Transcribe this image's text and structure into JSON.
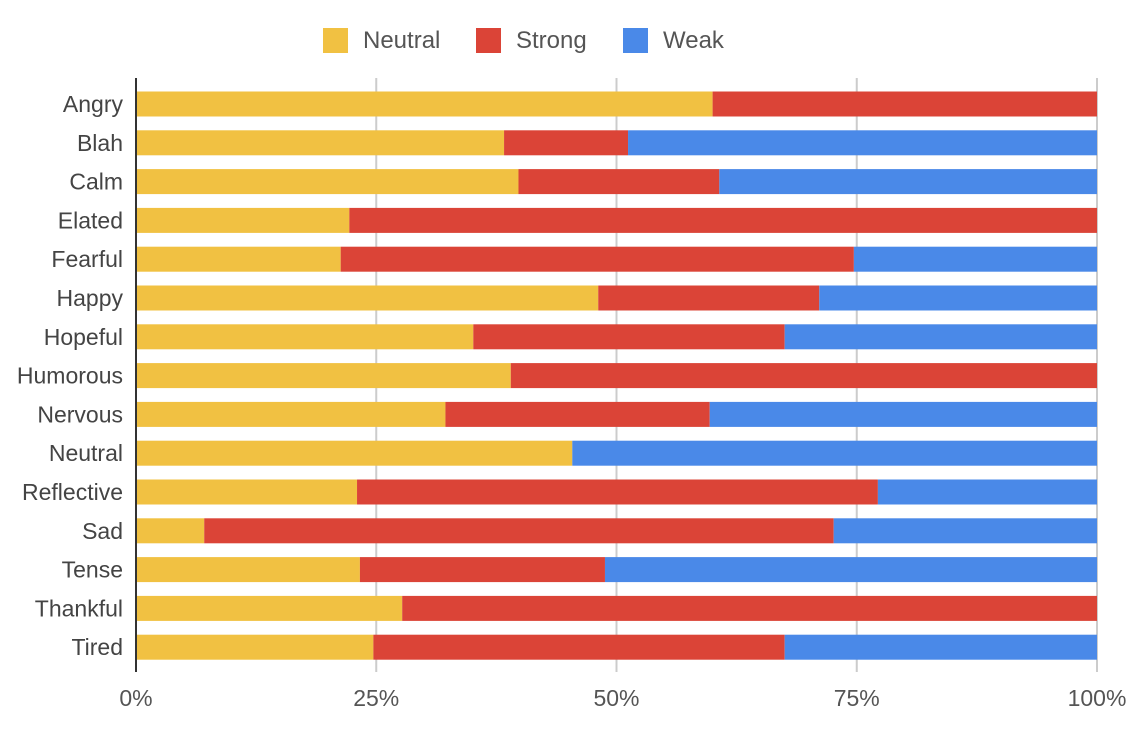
{
  "chart_data": {
    "type": "bar",
    "orientation": "horizontal",
    "stacked": "percent",
    "categories": [
      "Angry",
      "Blah",
      "Calm",
      "Elated",
      "Fearful",
      "Happy",
      "Hopeful",
      "Humorous",
      "Nervous",
      "Neutral",
      "Reflective",
      "Sad",
      "Tense",
      "Thankful",
      "Tired"
    ],
    "series": [
      {
        "name": "Neutral",
        "color": "#F1C142",
        "values": [
          60.0,
          38.3,
          39.8,
          22.2,
          21.3,
          48.1,
          35.1,
          39.0,
          32.2,
          45.4,
          23.0,
          7.1,
          23.3,
          27.7,
          24.7
        ]
      },
      {
        "name": "Strong",
        "color": "#DB4437",
        "values": [
          40.0,
          12.9,
          20.9,
          77.8,
          53.4,
          23.0,
          32.4,
          61.0,
          27.5,
          0.0,
          54.2,
          65.5,
          25.5,
          72.3,
          42.8
        ]
      },
      {
        "name": "Weak",
        "color": "#4A89E8",
        "values": [
          0.0,
          48.8,
          39.3,
          0.0,
          25.3,
          28.9,
          32.5,
          0.0,
          40.3,
          54.6,
          22.8,
          27.4,
          51.2,
          0.0,
          32.5
        ]
      }
    ],
    "x_ticks": [
      "0%",
      "25%",
      "50%",
      "75%",
      "100%"
    ],
    "xlim": [
      0,
      100
    ],
    "grid": true,
    "legend_position": "top"
  }
}
